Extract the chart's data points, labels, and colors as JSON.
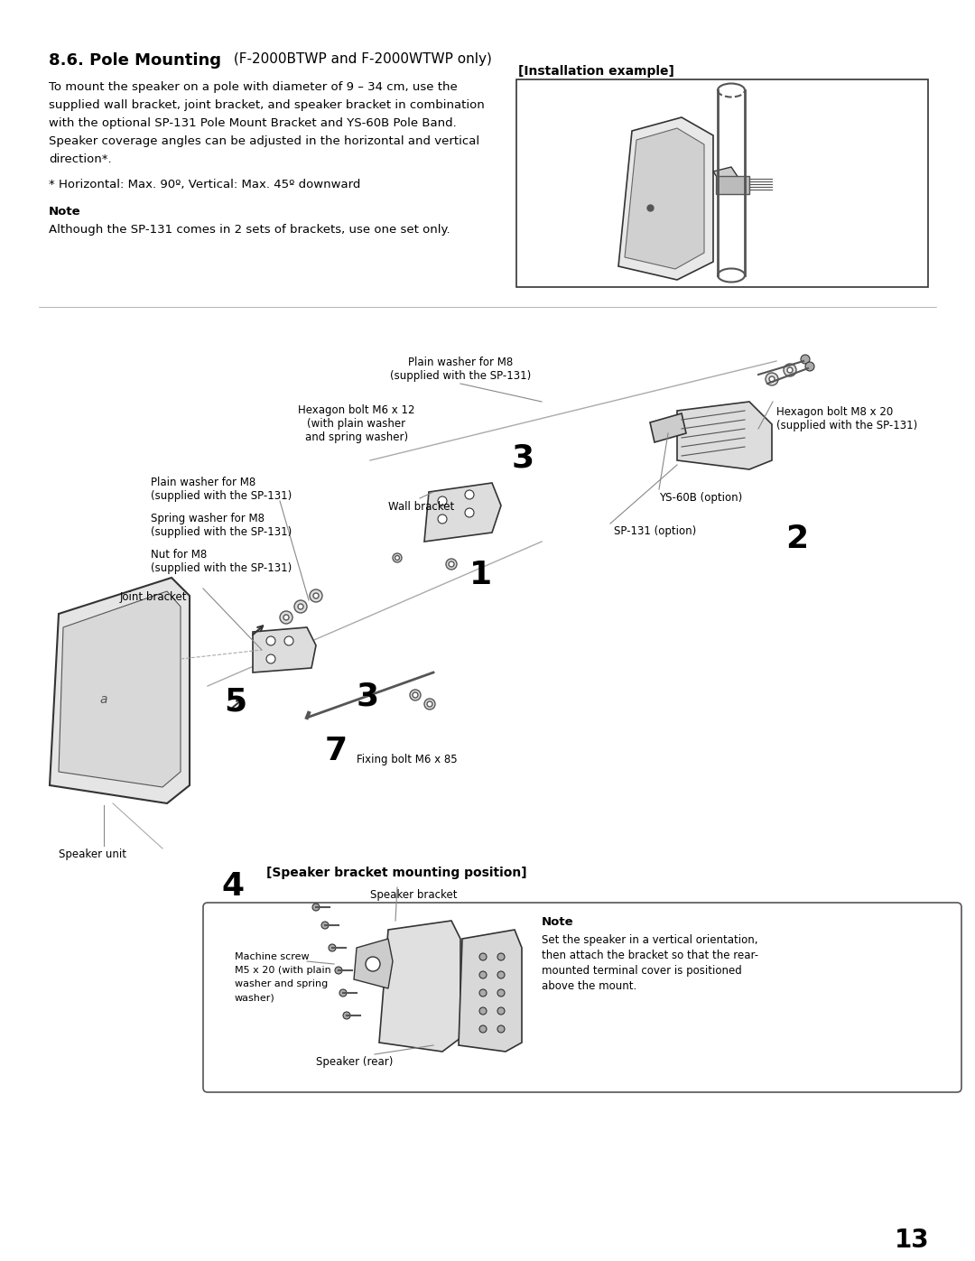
{
  "title_bold": "8.6. Pole Mounting",
  "title_normal": " (F-2000BTWP and F-2000WTWP only)",
  "body_text": "To mount the speaker on a pole with diameter of 9 – 34 cm, use the\nsupplied wall bracket, joint bracket, and speaker bracket in combination\nwith the optional SP-131 Pole Mount Bracket and YS-60B Pole Band.\nSpeaker coverage angles can be adjusted in the horizontal and vertical\ndirection*.",
  "footnote": "* Horizontal: Max. 90º, Vertical: Max. 45º downward",
  "note_label": "Note",
  "note_text": "Although the SP-131 comes in 2 sets of brackets, use one set only.",
  "install_label": "[Installation example]",
  "page_number": "13",
  "background_color": "#ffffff",
  "text_color": "#000000",
  "diagram_labels": {
    "plain_washer_m8_top": "Plain washer for M8\n(supplied with the SP-131)",
    "hexagon_bolt_m6": "Hexagon bolt M6 x 12\n(with plain washer\nand spring washer)",
    "plain_washer_m8_left": "Plain washer for M8\n(supplied with the SP-131)",
    "spring_washer_m8": "Spring washer for M8\n(supplied with the SP-131)",
    "nut_m8": "Nut for M8\n(supplied with the SP-131)",
    "joint_bracket": "Joint bracket",
    "wall_bracket": "Wall bracket",
    "hexagon_bolt_m8": "Hexagon bolt M8 x 20\n(supplied with the SP-131)",
    "ys60b": "YS-60B (option)",
    "sp131": "SP-131 (option)",
    "fixing_bolt": "Fixing bolt M6 x 85",
    "speaker_unit": "Speaker unit",
    "step2": "2",
    "step3a": "3",
    "step3b": "3",
    "step5": "5",
    "step7": "7",
    "step1": "1",
    "step4": "4",
    "bracket_title": "[Speaker bracket mounting position]",
    "speaker_bracket": "Speaker bracket",
    "machine_screw": "Machine screw\nM5 x 20 (with plain\nwasher and spring\nwasher)",
    "speaker_rear": "Speaker (rear)",
    "note2_label": "Note",
    "note2_text": "Set the speaker in a vertical orientation,\nthen attach the bracket so that the rear-\nmounted terminal cover is positioned\nabove the mount."
  }
}
